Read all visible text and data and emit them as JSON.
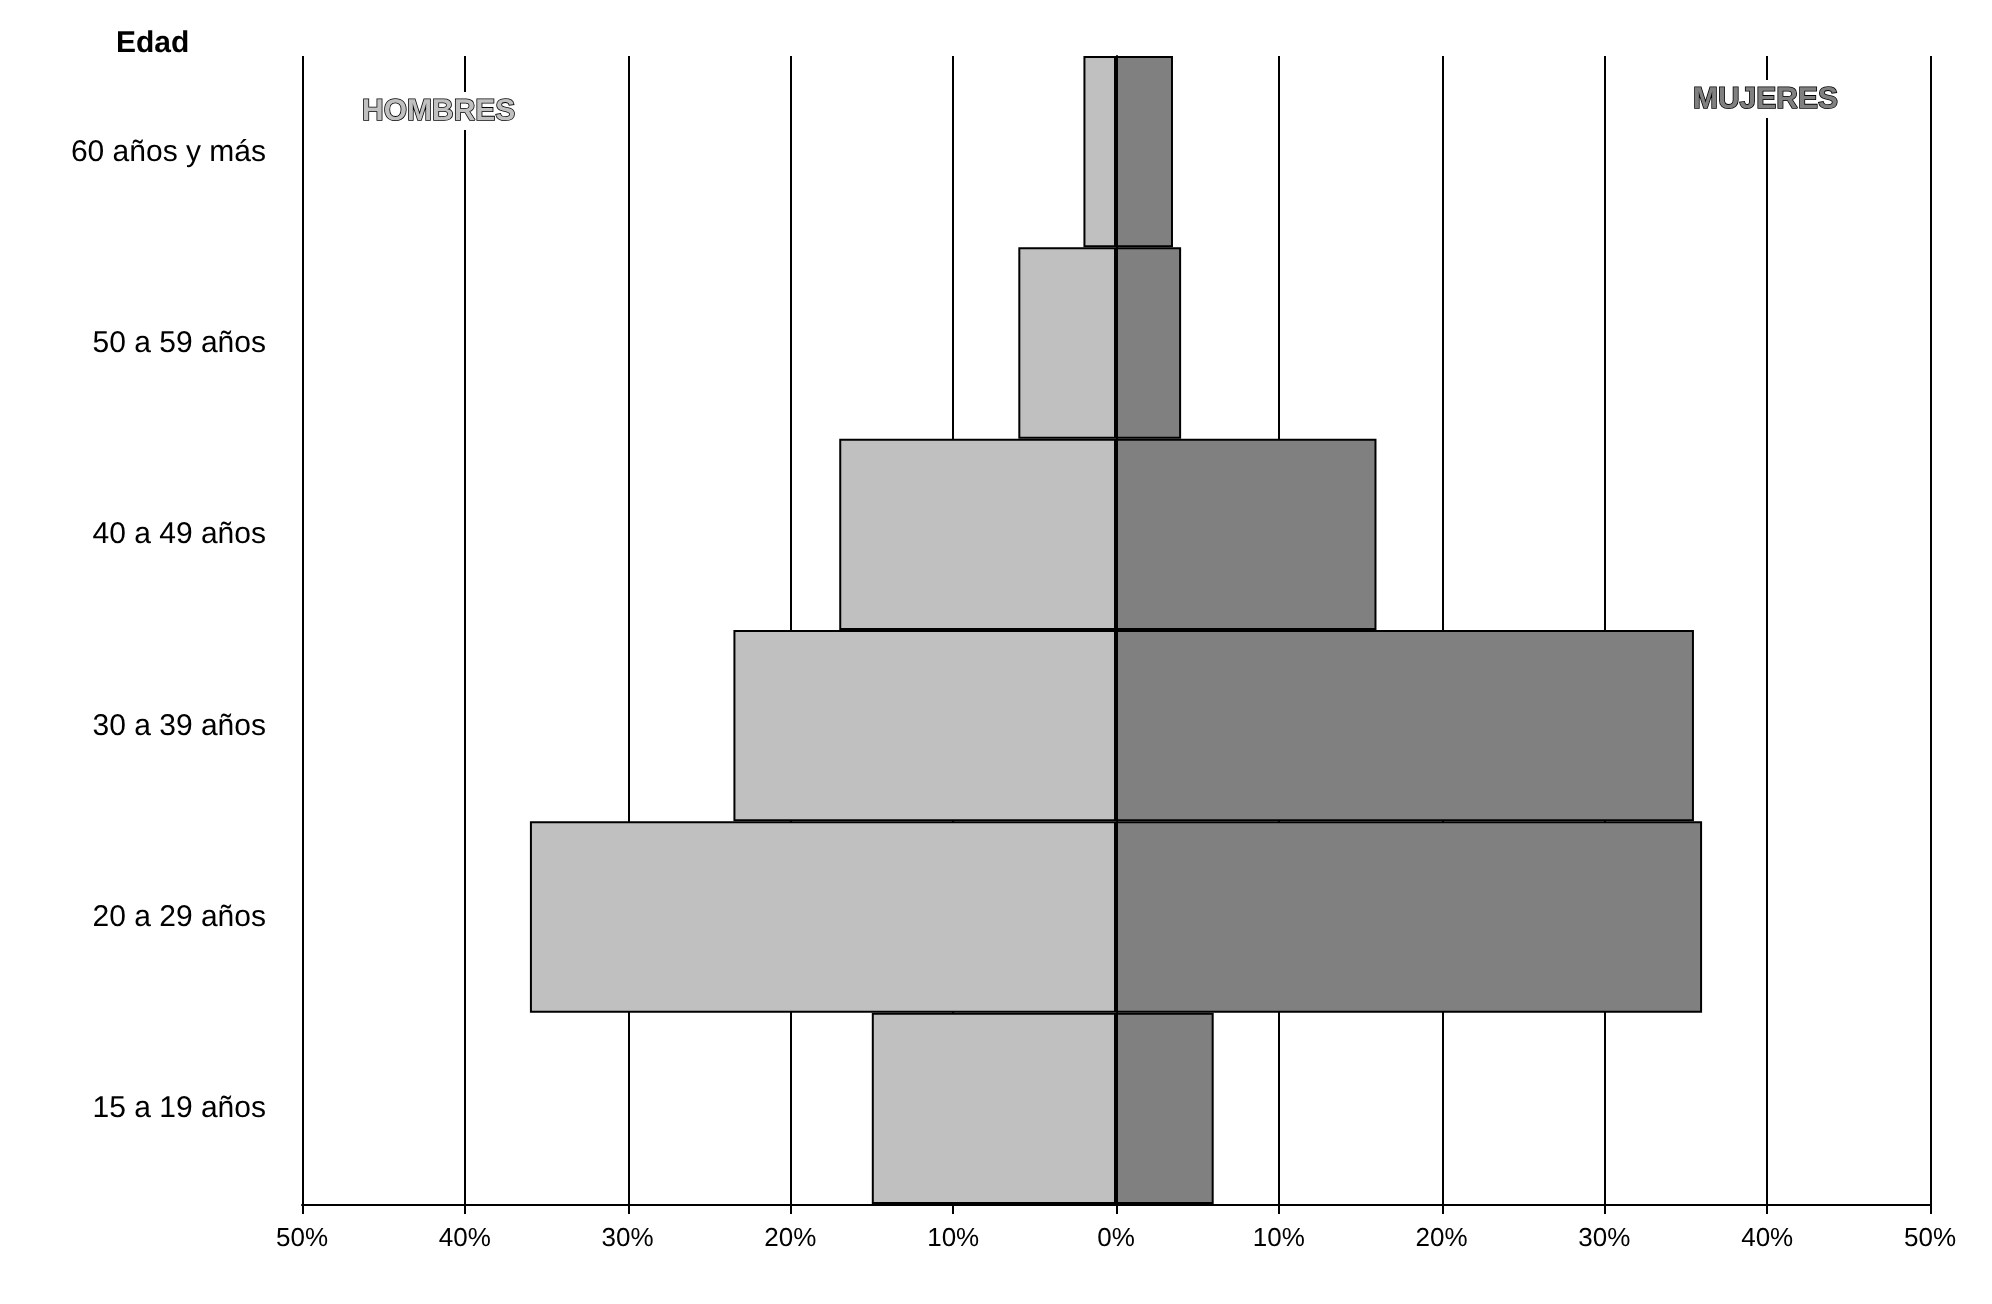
{
  "chart_data": {
    "type": "bar",
    "orientation": "horizontal",
    "stacked": true,
    "ylabel": "Edad",
    "categories": [
      "60 años y más",
      "50 a 59 años",
      "40 a 49 años",
      "30 a 39 años",
      "20 a 29 años",
      "15 a 19 años"
    ],
    "series": [
      {
        "name": "HOMBRES",
        "color": "#c0c0c0",
        "values": [
          -2,
          -6,
          -17,
          -23.5,
          -36,
          -15
        ]
      },
      {
        "name": "MUJERES",
        "color": "#808080",
        "values": [
          3.5,
          4,
          16,
          35.5,
          36,
          6
        ]
      }
    ],
    "xlim": [
      -50,
      50
    ],
    "xticks": [
      {
        "value": -50,
        "label": "50%"
      },
      {
        "value": -40,
        "label": "40%"
      },
      {
        "value": -30,
        "label": "30%"
      },
      {
        "value": -20,
        "label": "20%"
      },
      {
        "value": -10,
        "label": "10%"
      },
      {
        "value": 0,
        "label": "0%"
      },
      {
        "value": 10,
        "label": "10%"
      },
      {
        "value": 20,
        "label": "20%"
      },
      {
        "value": 30,
        "label": "30%"
      },
      {
        "value": 40,
        "label": "40%"
      },
      {
        "value": 50,
        "label": "50%"
      }
    ],
    "grid": "x",
    "legend": false
  }
}
